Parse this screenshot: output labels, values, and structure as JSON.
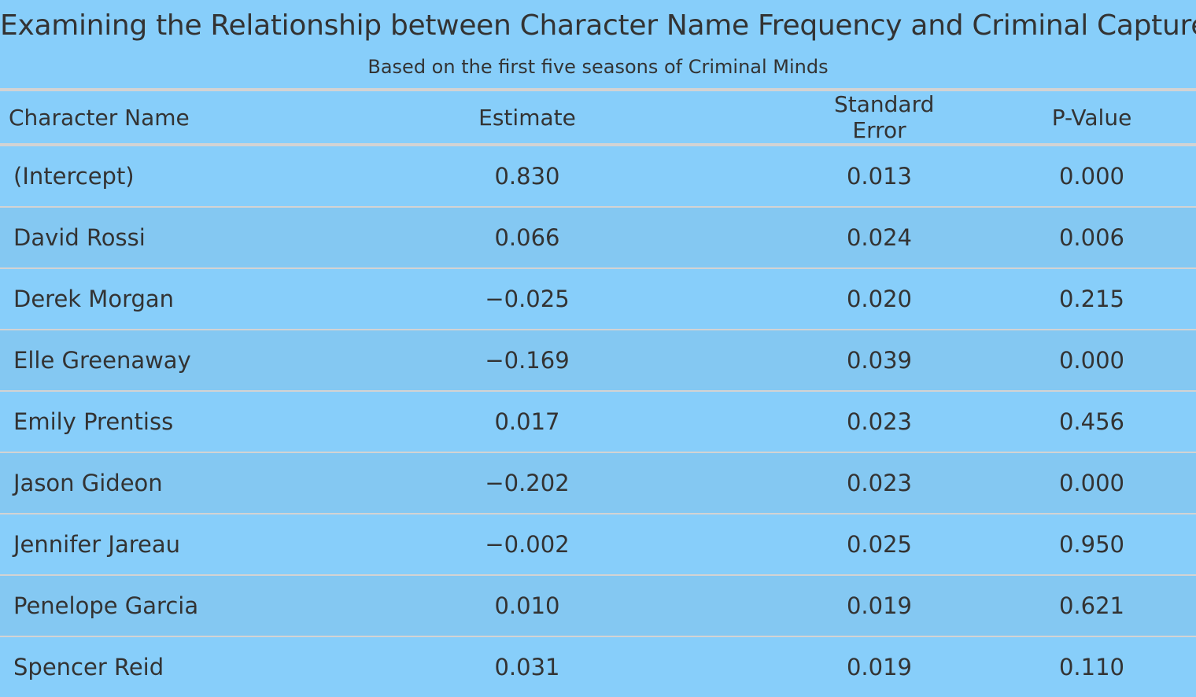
{
  "title": "Examining the Relationship between Character Name Frequency and Criminal Capture",
  "subtitle": "Based on the first five seasons of Criminal Minds",
  "columns": [
    "Character Name",
    "Estimate",
    "Standard Error",
    "P-Value"
  ],
  "rows": [
    [
      "(Intercept)",
      "0.830",
      "0.013",
      "0.000"
    ],
    [
      "David Rossi",
      "0.066",
      "0.024",
      "0.006"
    ],
    [
      "Derek Morgan",
      "−0.025",
      "0.020",
      "0.215"
    ],
    [
      "Elle Greenaway",
      "−0.169",
      "0.039",
      "0.000"
    ],
    [
      "Emily Prentiss",
      "0.017",
      "0.023",
      "0.456"
    ],
    [
      "Jason Gideon",
      "−0.202",
      "0.023",
      "0.000"
    ],
    [
      "Jennifer Jareau",
      "−0.002",
      "0.025",
      "0.950"
    ],
    [
      "Penelope Garcia",
      "0.010",
      "0.019",
      "0.621"
    ],
    [
      "Spencer Reid",
      "0.031",
      "0.019",
      "0.110"
    ]
  ],
  "colors": {
    "background": "#87cefa",
    "alt_row": "#84c8f2",
    "rule": "#d3d3d3",
    "text": "#333333"
  }
}
